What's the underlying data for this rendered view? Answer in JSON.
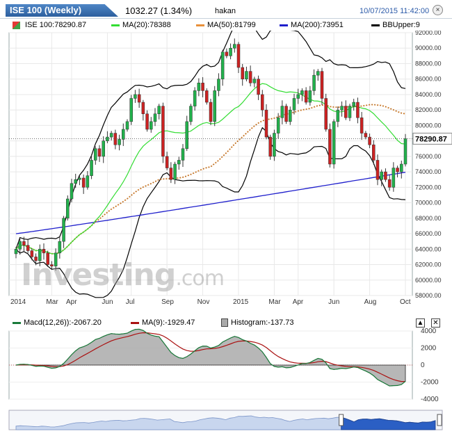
{
  "header": {
    "title": "ISE 100 (Weekly)",
    "price": "1032.27 (1.34%)",
    "user": "hakan",
    "timestamp": "10/07/2015 11:42:00",
    "close_label": "×"
  },
  "legend": {
    "last": "ISE 100:78290.87",
    "ma20": "MA(20):78388",
    "ma50": "MA(50):81799",
    "ma200": "MA(200):73951",
    "bbupper": "BBUpper:9"
  },
  "macd_legend": {
    "macd": "Macd(12,26)):-2067.20",
    "ma9": "MA(9):-1929.47",
    "hist": "Histogram:-137.73",
    "up_label": "▲",
    "close_label": "✕"
  },
  "watermark": {
    "main": "Investing",
    "suffix": ".com"
  },
  "colors": {
    "up": "#22b14c",
    "down": "#cc2222",
    "ma20": "#33dd33",
    "ma50": "#e8903a",
    "ma200": "#1f1fcc",
    "bb": "#000000",
    "macd": "#1a7a3a",
    "signal": "#aa1111",
    "hist": "#aaaaaa"
  },
  "chart_data": [
    {
      "type": "candlestick",
      "ylim": [
        58000,
        92000
      ],
      "yticks": [
        58000,
        60000,
        62000,
        64000,
        66000,
        68000,
        70000,
        72000,
        74000,
        76000,
        78000,
        80000,
        82000,
        84000,
        86000,
        88000,
        90000,
        92000
      ],
      "ytick_labels": [
        "58000.00",
        "60000.00",
        "62000.00",
        "64000.00",
        "66000.00",
        "68000.00",
        "70000.00",
        "72000.00",
        "74000.00",
        "76000.00",
        "78000.00",
        "80000.00",
        "82000.00",
        "84000.00",
        "86000.00",
        "88000.00",
        "90000.00",
        "92000.00"
      ],
      "xtick_labels": [
        "2014",
        "Mar",
        "Apr",
        "Jun",
        "Jul",
        "Sep",
        "Nov",
        "2015",
        "Mar",
        "Apr",
        "Jun",
        "Aug",
        "Oct"
      ],
      "xtick_index": [
        0,
        9,
        14,
        23,
        29,
        38,
        47,
        56,
        65,
        71,
        80,
        89,
        98
      ],
      "last_value": 78290.87,
      "last_label": "78290.87",
      "close": [
        64000,
        65000,
        64500,
        63800,
        63000,
        62500,
        64000,
        63500,
        62000,
        61800,
        63500,
        65000,
        68000,
        70500,
        72500,
        73000,
        73200,
        72000,
        73500,
        75500,
        77000,
        76000,
        78000,
        78500,
        79000,
        77500,
        78200,
        79500,
        80500,
        83500,
        84000,
        83000,
        81500,
        79500,
        80500,
        81500,
        82500,
        76000,
        74500,
        73000,
        75000,
        75500,
        77000,
        80500,
        82500,
        84500,
        85500,
        84500,
        83000,
        80500,
        84500,
        86000,
        89500,
        89000,
        90000,
        90500,
        87500,
        86000,
        87000,
        85500,
        86000,
        84000,
        82000,
        78500,
        76000,
        79000,
        81000,
        82500,
        80500,
        82000,
        83500,
        84000,
        84500,
        83000,
        84500,
        86500,
        87000,
        83500,
        79500,
        75000,
        80500,
        82000,
        82500,
        81000,
        82500,
        83000,
        81000,
        79000,
        78500,
        77500,
        75500,
        73000,
        74000,
        73000,
        72000,
        74500,
        74000,
        75000,
        78290
      ]
    },
    {
      "type": "line",
      "title": "MACD",
      "ylim": [
        -4000,
        4000
      ],
      "yticks": [
        -4000,
        -2000,
        0,
        2000,
        4000
      ],
      "ytick_labels": [
        "-4000",
        "-2000",
        "0",
        "2000",
        "4000"
      ]
    }
  ]
}
